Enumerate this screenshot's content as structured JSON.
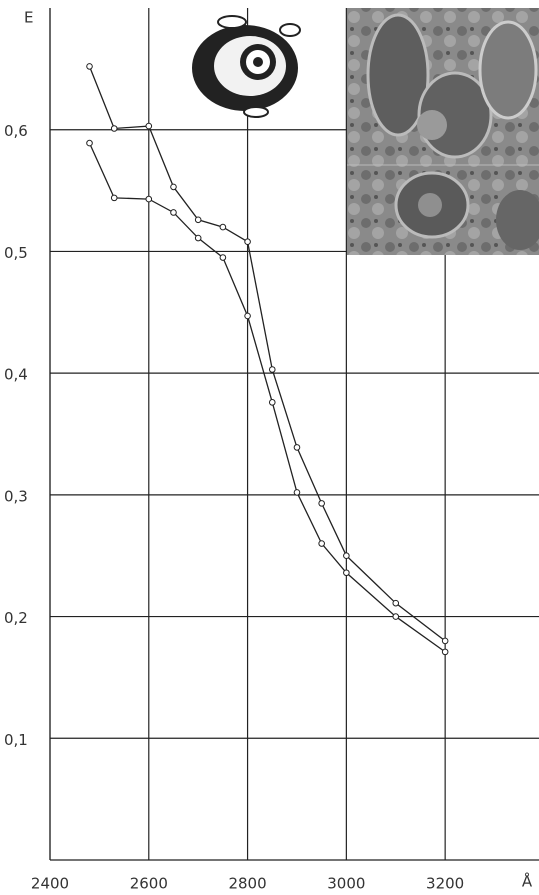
{
  "chart_data": {
    "type": "line",
    "y_label": "E",
    "x_label": "Å",
    "x": [
      2480,
      2530,
      2600,
      2650,
      2700,
      2750,
      2800,
      2850,
      2900,
      2950,
      3000,
      3100,
      3200
    ],
    "series": [
      {
        "color": "#222",
        "values": [
          0.652,
          0.601,
          0.603,
          0.553,
          0.526,
          0.52,
          0.508,
          0.403,
          0.339,
          0.293,
          0.25,
          0.211,
          0.18
        ]
      },
      {
        "color": "#222",
        "values": [
          0.589,
          0.544,
          0.543,
          0.532,
          0.511,
          0.495,
          0.447,
          0.376,
          0.302,
          0.26,
          0.236,
          0.2,
          0.171
        ]
      }
    ],
    "xlim": [
      2400,
      3390
    ],
    "ylim": [
      0,
      0.7
    ],
    "xticks": [
      2400,
      2600,
      2800,
      3000,
      3200
    ],
    "yticks": [
      {
        "value": 0.1,
        "label": "0,1"
      },
      {
        "value": 0.2,
        "label": "0,2"
      },
      {
        "value": 0.3,
        "label": "0,3"
      },
      {
        "value": 0.4,
        "label": "0,4"
      },
      {
        "value": 0.5,
        "label": "0,5"
      },
      {
        "value": 0.6,
        "label": "0,6"
      }
    ],
    "grid": true
  }
}
